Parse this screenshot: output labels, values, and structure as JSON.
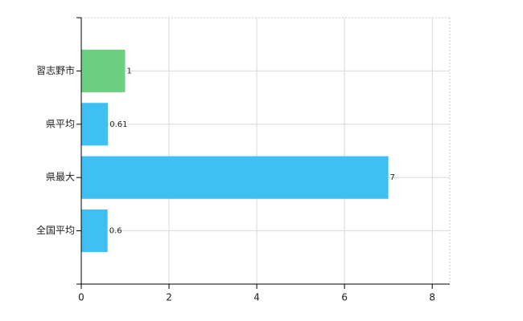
{
  "chart_data": {
    "type": "hbar",
    "categories": [
      "習志野市",
      "県平均",
      "県最大",
      "全国平均"
    ],
    "values": [
      1,
      0.61,
      7,
      0.6
    ],
    "colors": [
      "#6dcf82",
      "#3fc0f3",
      "#3fc0f3",
      "#3fc0f3"
    ],
    "xlim": [
      0,
      8.4
    ],
    "xticks": [
      0,
      2,
      4,
      6,
      8
    ],
    "grid": true
  }
}
